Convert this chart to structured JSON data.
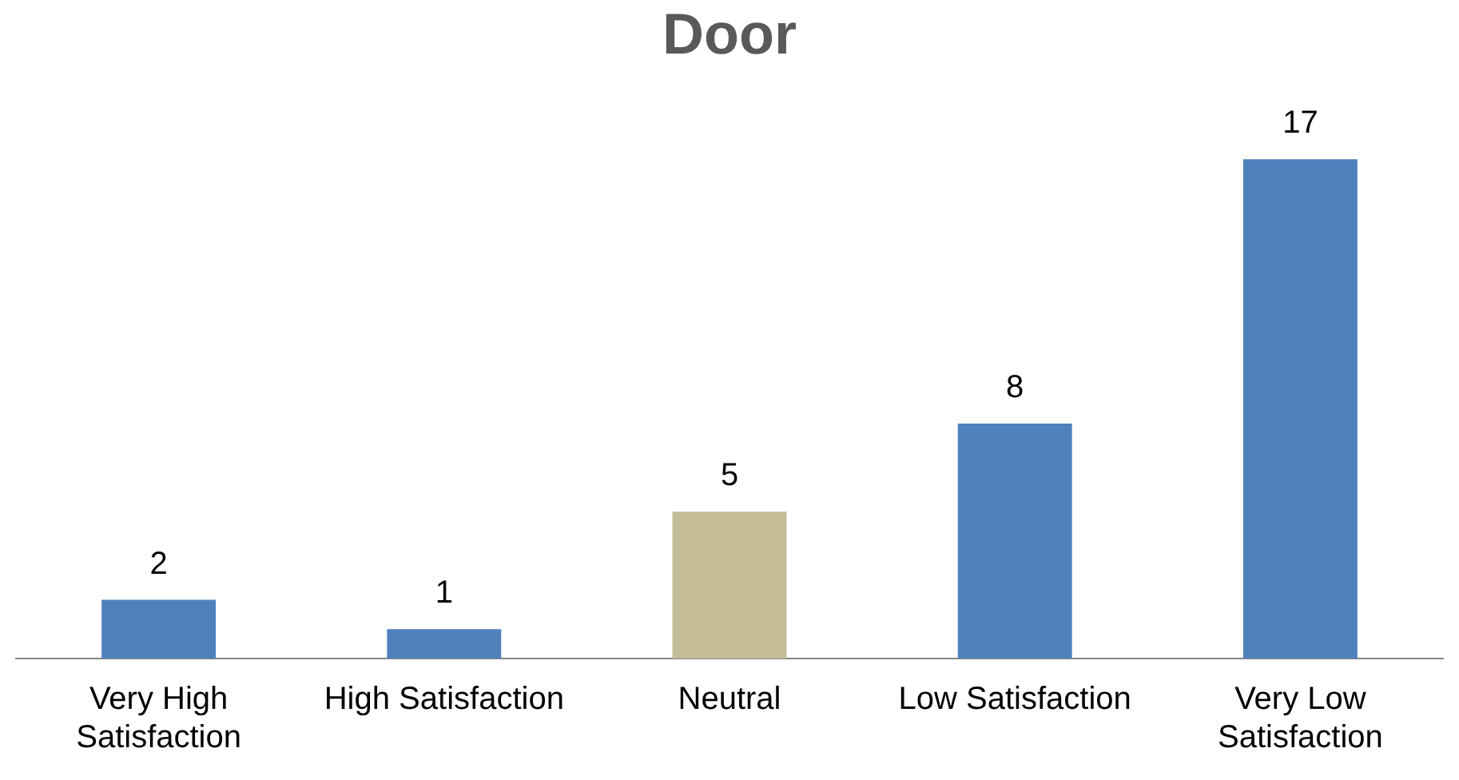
{
  "chart_data": {
    "type": "bar",
    "title": "Door",
    "categories": [
      "Very High Satisfaction",
      "High Satisfaction",
      "Neutral",
      "Low Satisfaction",
      "Very Low Satisfaction"
    ],
    "values": [
      2,
      1,
      5,
      8,
      17
    ],
    "colors": [
      "#4f81bd",
      "#4f81bd",
      "#c4bd97",
      "#4f81bd",
      "#4f81bd"
    ],
    "data_labels": true,
    "grid": false,
    "legend": false,
    "tick_labels": "x"
  }
}
